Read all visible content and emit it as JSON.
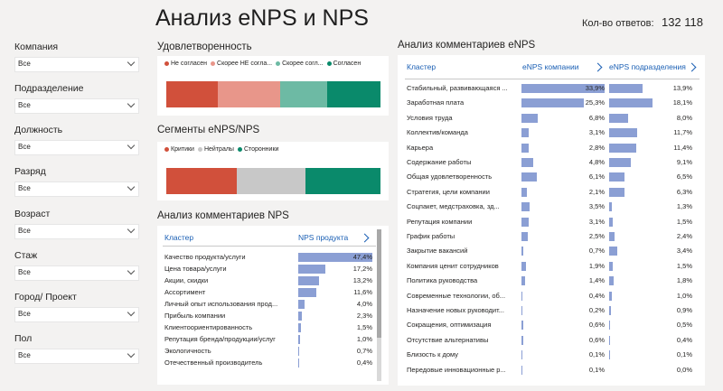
{
  "header": {
    "title": "Анализ eNPS и NPS",
    "count_label": "Кол-во ответов:",
    "count_value": "132 118"
  },
  "filters": [
    {
      "label": "Компания",
      "value": "Все"
    },
    {
      "label": "Подразделение",
      "value": "Все"
    },
    {
      "label": "Должность",
      "value": "Все"
    },
    {
      "label": "Разряд",
      "value": "Все"
    },
    {
      "label": "Возраст",
      "value": "Все"
    },
    {
      "label": "Стаж",
      "value": "Все"
    },
    {
      "label": "Город/ Проект",
      "value": "Все"
    },
    {
      "label": "Пол",
      "value": "Все"
    }
  ],
  "satisfaction": {
    "title": "Удовлетворенность",
    "legend": [
      {
        "label": "Не согласен",
        "color": "#d1503b"
      },
      {
        "label": "Скорее НЕ согла...",
        "color": "#e8968a"
      },
      {
        "label": "Скорее согл...",
        "color": "#6dbaa4"
      },
      {
        "label": "Согласен",
        "color": "#0a8a6b"
      }
    ],
    "shares": [
      0.24,
      0.29,
      0.22,
      0.25
    ]
  },
  "segments": {
    "title": "Сегменты eNPS/NPS",
    "legend": [
      {
        "label": "Критики",
        "color": "#d1503b"
      },
      {
        "label": "Нейтралы",
        "color": "#c8c8c8"
      },
      {
        "label": "Сторонники",
        "color": "#0a8a6b"
      }
    ],
    "shares": [
      0.33,
      0.32,
      0.35
    ]
  },
  "nps": {
    "title": "Анализ комментариев NPS",
    "col_cluster": "Кластер",
    "col_value": "NPS продукта",
    "rows": [
      {
        "label": "Качество продукта/услуги",
        "value": 47.4,
        "text": "47,4%"
      },
      {
        "label": "Цена товара/услуги",
        "value": 17.2,
        "text": "17,2%"
      },
      {
        "label": "Акции, скидки",
        "value": 13.2,
        "text": "13,2%"
      },
      {
        "label": "Ассортимент",
        "value": 11.6,
        "text": "11,6%"
      },
      {
        "label": "Личный опыт использования прод...",
        "value": 4.0,
        "text": "4,0%"
      },
      {
        "label": "Прибыль компании",
        "value": 2.3,
        "text": "2,3%"
      },
      {
        "label": "Клиентоориентированность",
        "value": 1.5,
        "text": "1,5%"
      },
      {
        "label": "Репутация бренда/продукции/услуг",
        "value": 1.0,
        "text": "1,0%"
      },
      {
        "label": "Экологичность",
        "value": 0.7,
        "text": "0,7%"
      },
      {
        "label": "Отечественный производитель",
        "value": 0.4,
        "text": "0,4%"
      }
    ]
  },
  "enps": {
    "title": "Анализ комментариев eNPS",
    "col_cluster": "Кластер",
    "col_company": "eNPS компании",
    "col_division": "eNPS подразделения",
    "rows": [
      {
        "label": "Стабильный, развивающаяся ...",
        "company": 33.9,
        "company_text": "33,9%",
        "division": 13.9,
        "division_text": "13,9%"
      },
      {
        "label": "Заработная плата",
        "company": 25.3,
        "company_text": "25,3%",
        "division": 18.1,
        "division_text": "18,1%"
      },
      {
        "label": "Условия труда",
        "company": 6.8,
        "company_text": "6,8%",
        "division": 8.0,
        "division_text": "8,0%"
      },
      {
        "label": "Коллектив/команда",
        "company": 3.1,
        "company_text": "3,1%",
        "division": 11.7,
        "division_text": "11,7%"
      },
      {
        "label": "Карьера",
        "company": 2.8,
        "company_text": "2,8%",
        "division": 11.4,
        "division_text": "11,4%"
      },
      {
        "label": "Содержание работы",
        "company": 4.8,
        "company_text": "4,8%",
        "division": 9.1,
        "division_text": "9,1%"
      },
      {
        "label": "Общая удовлетворенность",
        "company": 6.1,
        "company_text": "6,1%",
        "division": 6.5,
        "division_text": "6,5%"
      },
      {
        "label": "Стратегия, цели компании",
        "company": 2.1,
        "company_text": "2,1%",
        "division": 6.3,
        "division_text": "6,3%"
      },
      {
        "label": "Соцпакет, медстраховка, зд...",
        "company": 3.5,
        "company_text": "3,5%",
        "division": 1.3,
        "division_text": "1,3%"
      },
      {
        "label": "Репутация компании",
        "company": 3.1,
        "company_text": "3,1%",
        "division": 1.5,
        "division_text": "1,5%"
      },
      {
        "label": "График работы",
        "company": 2.5,
        "company_text": "2,5%",
        "division": 2.4,
        "division_text": "2,4%"
      },
      {
        "label": "Закрытие вакансий",
        "company": 0.7,
        "company_text": "0,7%",
        "division": 3.4,
        "division_text": "3,4%"
      },
      {
        "label": "Компания ценит сотрудников",
        "company": 1.9,
        "company_text": "1,9%",
        "division": 1.5,
        "division_text": "1,5%"
      },
      {
        "label": "Политика руководства",
        "company": 1.4,
        "company_text": "1,4%",
        "division": 1.8,
        "division_text": "1,8%"
      },
      {
        "label": "Современные технологии, об...",
        "company": 0.4,
        "company_text": "0,4%",
        "division": 1.0,
        "division_text": "1,0%"
      },
      {
        "label": "Назначение новых руководит...",
        "company": 0.2,
        "company_text": "0,2%",
        "division": 0.9,
        "division_text": "0,9%"
      },
      {
        "label": "Сокращения, оптимизация",
        "company": 0.6,
        "company_text": "0,6%",
        "division": 0.5,
        "division_text": "0,5%"
      },
      {
        "label": "Отсутствие альтернативы",
        "company": 0.6,
        "company_text": "0,6%",
        "division": 0.4,
        "division_text": "0,4%"
      },
      {
        "label": "Близость к дому",
        "company": 0.1,
        "company_text": "0,1%",
        "division": 0.1,
        "division_text": "0,1%"
      },
      {
        "label": "Передовые инновационные р...",
        "company": 0.1,
        "company_text": "0,1%",
        "division": 0.0,
        "division_text": "0,0%"
      }
    ]
  }
}
